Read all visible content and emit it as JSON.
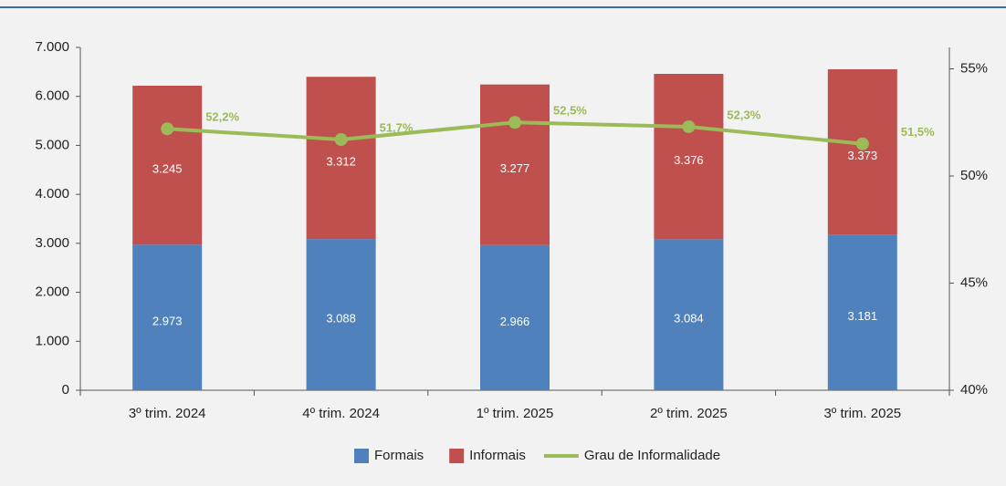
{
  "chart_data": {
    "type": "bar",
    "stacked": true,
    "categories": [
      "3º trim. 2024",
      "4º trim. 2024",
      "1º trim. 2025",
      "2º trim. 2025",
      "3º trim. 2025"
    ],
    "series": [
      {
        "name": "Formais",
        "color": "#4f81bd",
        "values": [
          2973,
          3088,
          2966,
          3084,
          3181
        ],
        "value_labels": [
          "2.973",
          "3.088",
          "2.966",
          "3.084",
          "3.181"
        ]
      },
      {
        "name": "Informais",
        "color": "#c0504d",
        "values": [
          3245,
          3312,
          3277,
          3376,
          3373
        ],
        "value_labels": [
          "3.245",
          "3.312",
          "3.277",
          "3.376",
          "3.373"
        ]
      },
      {
        "name": "Grau de Informalidade",
        "type": "line",
        "axis": "y2",
        "color": "#9bbb59",
        "values": [
          52.2,
          51.7,
          52.5,
          52.3,
          51.5
        ],
        "value_labels": [
          "52,2%",
          "51,7%",
          "52,5%",
          "52,3%",
          "51,5%"
        ]
      }
    ],
    "ylim": [
      0,
      7000
    ],
    "yticks": [
      0,
      {
        "value": 1000,
        "label": "1.000"
      },
      {
        "value": 2000,
        "label": "2.000"
      },
      {
        "value": 3000,
        "label": "3.000"
      },
      {
        "value": 4000,
        "label": "4.000"
      },
      {
        "value": 5000,
        "label": "5.000"
      },
      {
        "value": 6000,
        "label": "6.000"
      },
      {
        "value": 7000,
        "label": "7.000"
      }
    ],
    "y2lim": [
      40,
      56
    ],
    "y2ticks": [
      {
        "value": 40,
        "label": "40%"
      },
      {
        "value": 45,
        "label": "45%"
      },
      {
        "value": 50,
        "label": "50%"
      },
      {
        "value": 55,
        "label": "55%"
      }
    ],
    "legend": "bottom"
  }
}
